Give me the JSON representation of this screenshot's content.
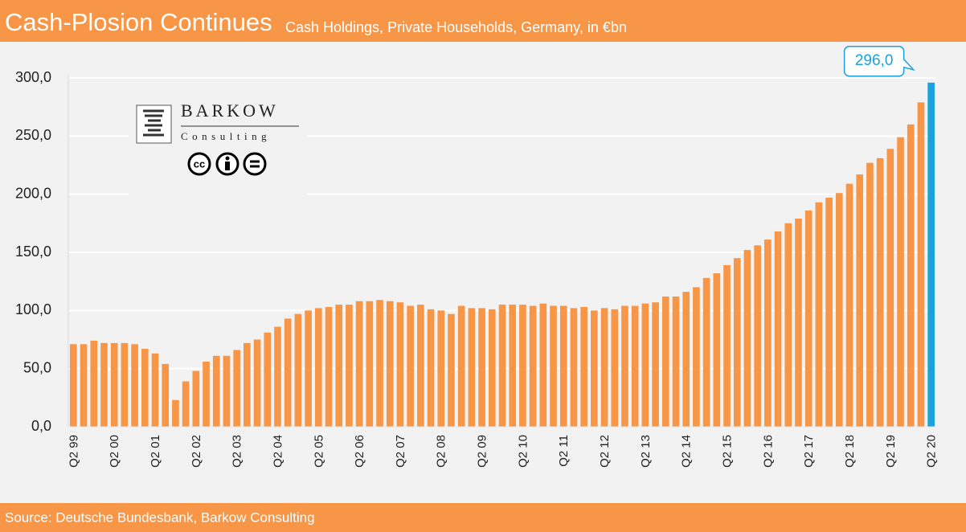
{
  "chart_data": {
    "type": "bar",
    "title": "Cash-Plosion Continues",
    "subtitle": "Cash Holdings, Private Households, Germany, in €bn",
    "source": "Source: Deutsche Bundesbank, Barkow Consulting",
    "categories": [
      "Q2 99",
      null,
      null,
      null,
      "Q2 00",
      null,
      null,
      null,
      "Q2 01",
      null,
      null,
      null,
      "Q2 02",
      null,
      null,
      null,
      "Q2 03",
      null,
      null,
      null,
      "Q2 04",
      null,
      null,
      null,
      "Q2 05",
      null,
      null,
      null,
      "Q2 06",
      null,
      null,
      null,
      "Q2 07",
      null,
      null,
      null,
      "Q2 08",
      null,
      null,
      null,
      "Q2 09",
      null,
      null,
      null,
      "Q2 10",
      null,
      null,
      null,
      "Q2 11",
      null,
      null,
      null,
      "Q2 12",
      null,
      null,
      null,
      "Q2 13",
      null,
      null,
      null,
      "Q2 14",
      null,
      null,
      null,
      "Q2 15",
      null,
      null,
      null,
      "Q2 16",
      null,
      null,
      null,
      "Q2 17",
      null,
      null,
      null,
      "Q2 18",
      null,
      null,
      null,
      "Q2 19",
      null,
      null,
      null,
      "Q2 20"
    ],
    "values": [
      71,
      71,
      74,
      72,
      72,
      72,
      71,
      67,
      63,
      54,
      23,
      39,
      48,
      56,
      61,
      61,
      66,
      72,
      75,
      81,
      86,
      93,
      97,
      100,
      102,
      103,
      105,
      105,
      108,
      108,
      109,
      108,
      107,
      104,
      105,
      101,
      100,
      97,
      104,
      102,
      102,
      101,
      105,
      105,
      105,
      104,
      106,
      104,
      104,
      102,
      103,
      100,
      102,
      101,
      104,
      104,
      106,
      107,
      112,
      112,
      116,
      120,
      128,
      132,
      139,
      145,
      152,
      156,
      161,
      168,
      175,
      179,
      186,
      193,
      197,
      201,
      209,
      217,
      227,
      231,
      239,
      249,
      260,
      279,
      296
    ],
    "value_labels": [
      null,
      null,
      null,
      null,
      null,
      null,
      null,
      null,
      null,
      null,
      null,
      null,
      null,
      null,
      null,
      null,
      null,
      null,
      null,
      null,
      null,
      null,
      null,
      null,
      null,
      null,
      null,
      null,
      null,
      null,
      null,
      null,
      null,
      null,
      null,
      null,
      null,
      null,
      null,
      null,
      null,
      null,
      null,
      null,
      null,
      null,
      null,
      null,
      null,
      null,
      null,
      null,
      null,
      null,
      null,
      null,
      null,
      null,
      null,
      null,
      null,
      null,
      null,
      null,
      null,
      null,
      null,
      null,
      null,
      null,
      null,
      null,
      null,
      null,
      null,
      null,
      null,
      null,
      null,
      null,
      null,
      null,
      null,
      null,
      "296,0"
    ],
    "color": "#f79646",
    "highlight_color": "#1ba1dc",
    "ylim": [
      0,
      300
    ],
    "yticks": [
      {
        "value": 0,
        "label": "0,0"
      },
      {
        "value": 50,
        "label": "50,0"
      },
      {
        "value": 100,
        "label": "100,0"
      },
      {
        "value": 150,
        "label": "150,0"
      },
      {
        "value": 200,
        "label": "200,0"
      },
      {
        "value": 250,
        "label": "250,0"
      },
      {
        "value": 300,
        "label": "300,0"
      }
    ],
    "grid": true
  },
  "logo": {
    "name": "BARKOW",
    "tagline": "Consulting",
    "cc": "cc"
  }
}
